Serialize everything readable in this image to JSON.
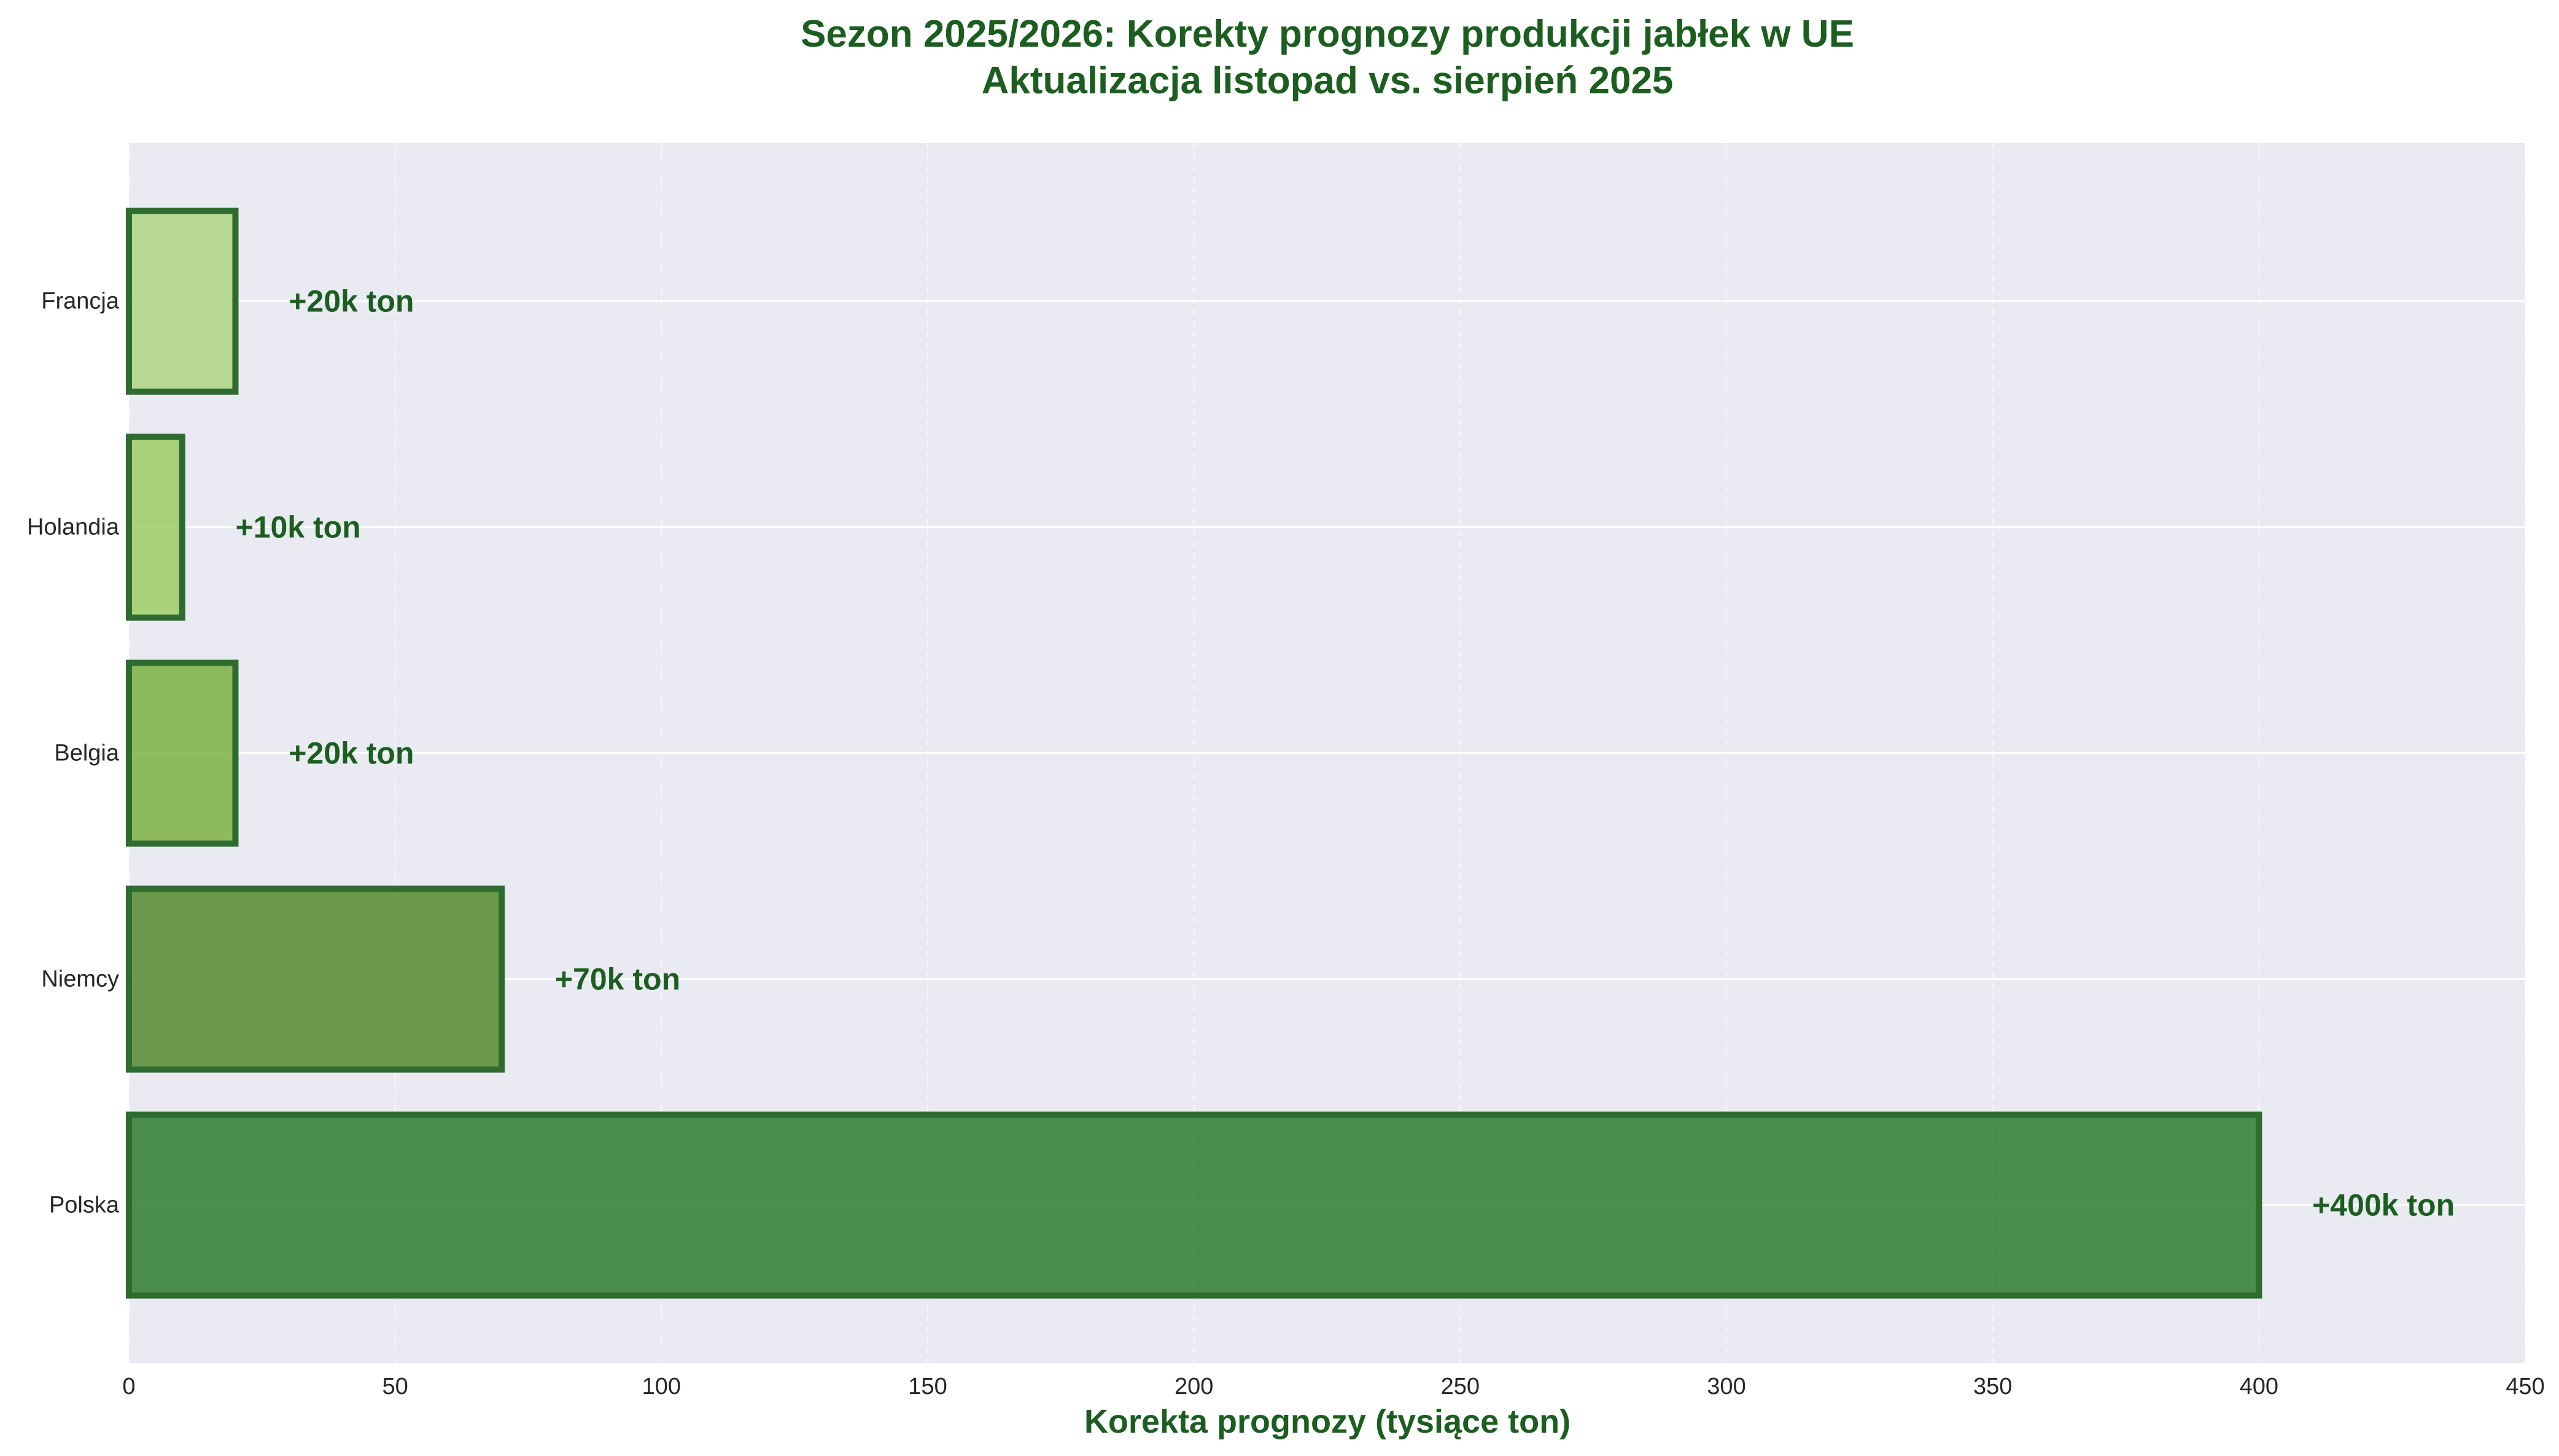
{
  "chart_data": {
    "type": "bar",
    "orientation": "horizontal",
    "title": "Sezon 2025/2026: Korekty prognozy produkcji jabłek w UE",
    "subtitle": "Aktualizacja listopad vs. sierpień 2025",
    "xlabel": "Korekta prognozy (tysiące ton)",
    "ylabel": "",
    "xlim": [
      0,
      450
    ],
    "x_ticks": [
      0,
      50,
      100,
      150,
      200,
      250,
      300,
      350,
      400,
      450
    ],
    "grid": true,
    "categories": [
      "Polska",
      "Niemcy",
      "Belgia",
      "Holandia",
      "Francja"
    ],
    "values": [
      400,
      70,
      20,
      10,
      20
    ],
    "data_labels": [
      "+400k ton",
      "+70k ton",
      "+20k ton",
      "+10k ton",
      "+20k ton"
    ],
    "bar_colors": [
      "#2e7d32",
      "#558b2f",
      "#7cb342",
      "#9ccc65",
      "#aed581"
    ],
    "bar_edge_color": "#2e6b2e",
    "text_color": "#1b5e20",
    "plot_background": "#eaeaf2"
  }
}
